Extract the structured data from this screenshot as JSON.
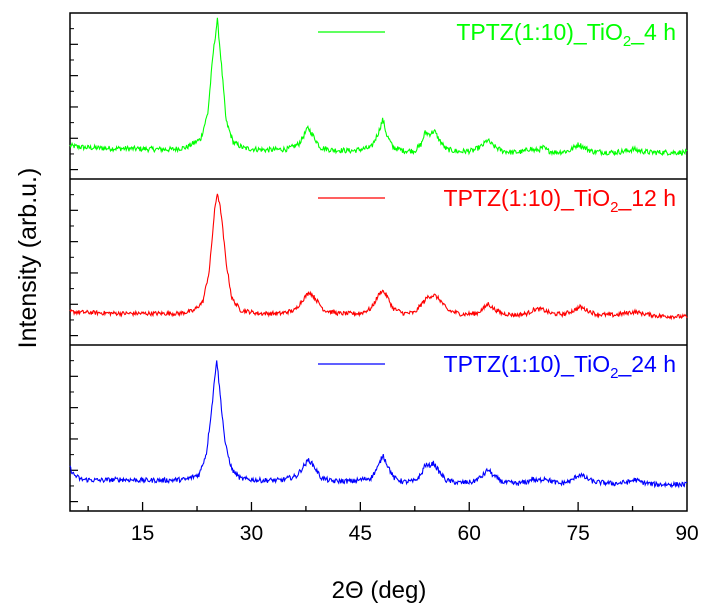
{
  "chart_data": {
    "type": "line",
    "xlabel": "2Θ (deg)",
    "ylabel": "Intensity (arb.u.)",
    "xlim": [
      5,
      90
    ],
    "x_ticks": [
      15,
      30,
      45,
      60,
      75,
      90
    ],
    "grid": false,
    "panels": [
      {
        "series_name": "TPTZ(1:10)_TiO2_4 h",
        "legend_main": "TPTZ(1:10)_TiO",
        "legend_sub": "2",
        "legend_tail": "_4 h",
        "color": "#00ff00",
        "ylim": [
          0,
          100
        ],
        "baseline": 18,
        "end": 16,
        "noise": 1.6,
        "points": [
          [
            5,
            20.0
          ],
          [
            7,
            19.0
          ],
          [
            10,
            18.5
          ],
          [
            13,
            18.3
          ],
          [
            16,
            18.0
          ],
          [
            19,
            17.8
          ],
          [
            21,
            19.0
          ],
          [
            23,
            24.0
          ],
          [
            24,
            40.0
          ],
          [
            24.7,
            75.0
          ],
          [
            25.3,
            96.0
          ],
          [
            25.8,
            72.0
          ],
          [
            26.5,
            35.0
          ],
          [
            27.5,
            22.0
          ],
          [
            29,
            18.5
          ],
          [
            32,
            17.5
          ],
          [
            35,
            18.0
          ],
          [
            36.5,
            21.0
          ],
          [
            37.2,
            26.0
          ],
          [
            37.8,
            31.0
          ],
          [
            38.5,
            26.0
          ],
          [
            39.5,
            19.0
          ],
          [
            41,
            17.5
          ],
          [
            44,
            17.0
          ],
          [
            46.5,
            19.0
          ],
          [
            47.5,
            28.0
          ],
          [
            48.1,
            36.0
          ],
          [
            48.6,
            27.0
          ],
          [
            49.5,
            19.0
          ],
          [
            51,
            17.0
          ],
          [
            52.5,
            17.0
          ],
          [
            53.4,
            21.0
          ],
          [
            53.9,
            28.0
          ],
          [
            54.5,
            27.0
          ],
          [
            55.2,
            29.0
          ],
          [
            55.8,
            24.0
          ],
          [
            56.8,
            18.0
          ],
          [
            58.5,
            16.5
          ],
          [
            60.5,
            17.0
          ],
          [
            61.8,
            20.0
          ],
          [
            62.5,
            23.5
          ],
          [
            63.3,
            20.0
          ],
          [
            64.5,
            17.0
          ],
          [
            66,
            16.0
          ],
          [
            67.5,
            16.5
          ],
          [
            68.4,
            18.5
          ],
          [
            69,
            17.0
          ],
          [
            69.8,
            18.0
          ],
          [
            70.2,
            19.0
          ],
          [
            70.8,
            17.0
          ],
          [
            72,
            16.0
          ],
          [
            73.8,
            17.0
          ],
          [
            74.6,
            19.5
          ],
          [
            75.1,
            21.0
          ],
          [
            75.8,
            19.0
          ],
          [
            77,
            16.5
          ],
          [
            80,
            16.0
          ],
          [
            81.8,
            17.0
          ],
          [
            82.6,
            18.0
          ],
          [
            83.4,
            17.0
          ],
          [
            85,
            16.0
          ],
          [
            90,
            16.0
          ]
        ]
      },
      {
        "series_name": "TPTZ(1:10)_TiO2_12 h",
        "legend_main": "TPTZ(1:10)_TiO",
        "legend_sub": "2",
        "legend_tail": "_12 h",
        "color": "#ff0000",
        "ylim": [
          0,
          100
        ],
        "baseline": 20,
        "end": 17,
        "noise": 1.3,
        "points": [
          [
            5,
            20.0
          ],
          [
            8,
            19.5
          ],
          [
            12,
            19.0
          ],
          [
            16,
            19.0
          ],
          [
            20,
            19.0
          ],
          [
            22,
            20.5
          ],
          [
            23.3,
            26.0
          ],
          [
            24.2,
            45.0
          ],
          [
            24.9,
            80.0
          ],
          [
            25.3,
            92.0
          ],
          [
            25.8,
            80.0
          ],
          [
            26.5,
            50.0
          ],
          [
            27.3,
            28.0
          ],
          [
            28.5,
            21.0
          ],
          [
            31,
            19.0
          ],
          [
            34,
            19.0
          ],
          [
            36,
            21.0
          ],
          [
            37.2,
            28.0
          ],
          [
            38,
            32.0
          ],
          [
            38.8,
            28.0
          ],
          [
            40,
            21.0
          ],
          [
            42,
            19.0
          ],
          [
            45,
            19.0
          ],
          [
            46.5,
            22.0
          ],
          [
            47.5,
            30.0
          ],
          [
            48,
            33.0
          ],
          [
            48.6,
            30.0
          ],
          [
            49.5,
            22.0
          ],
          [
            51,
            19.0
          ],
          [
            52.5,
            19.5
          ],
          [
            53.5,
            25.0
          ],
          [
            54.3,
            29.0
          ],
          [
            55.2,
            30.0
          ],
          [
            56,
            27.0
          ],
          [
            57,
            21.0
          ],
          [
            59,
            18.5
          ],
          [
            61,
            19.0
          ],
          [
            62,
            22.0
          ],
          [
            62.6,
            25.0
          ],
          [
            63.3,
            22.0
          ],
          [
            64.5,
            19.0
          ],
          [
            66.5,
            18.0
          ],
          [
            68,
            19.0
          ],
          [
            69,
            21.5
          ],
          [
            70,
            21.5
          ],
          [
            71.3,
            19.0
          ],
          [
            73,
            18.5
          ],
          [
            74.5,
            21.0
          ],
          [
            75.3,
            23.0
          ],
          [
            76.2,
            21.0
          ],
          [
            77.5,
            18.5
          ],
          [
            80,
            18.0
          ],
          [
            82,
            19.5
          ],
          [
            82.8,
            20.0
          ],
          [
            83.8,
            19.0
          ],
          [
            86,
            17.5
          ],
          [
            90,
            17.0
          ]
        ]
      },
      {
        "series_name": "TPTZ(1:10)_TiO2_24 h",
        "legend_main": "TPTZ(1:10)_TiO",
        "legend_sub": "2",
        "legend_tail": "_24 h",
        "color": "#0000ff",
        "ylim": [
          0,
          100
        ],
        "baseline": 19,
        "end": 16,
        "noise": 1.5,
        "points": [
          [
            5,
            26.0
          ],
          [
            5.5,
            22.0
          ],
          [
            6.5,
            19.0
          ],
          [
            9,
            18.5
          ],
          [
            12,
            19.0
          ],
          [
            15,
            18.5
          ],
          [
            18,
            18.5
          ],
          [
            21,
            19.0
          ],
          [
            22.8,
            22.0
          ],
          [
            23.8,
            35.0
          ],
          [
            24.6,
            65.0
          ],
          [
            25.2,
            92.0
          ],
          [
            25.8,
            65.0
          ],
          [
            26.4,
            40.0
          ],
          [
            27.3,
            25.0
          ],
          [
            28.5,
            19.5
          ],
          [
            31,
            18.5
          ],
          [
            34,
            18.5
          ],
          [
            36.2,
            21.0
          ],
          [
            37.2,
            27.0
          ],
          [
            37.9,
            31.0
          ],
          [
            38.6,
            27.0
          ],
          [
            39.6,
            20.0
          ],
          [
            41,
            18.0
          ],
          [
            44,
            18.0
          ],
          [
            46.5,
            20.0
          ],
          [
            47.5,
            27.0
          ],
          [
            48.1,
            34.0
          ],
          [
            48.7,
            28.0
          ],
          [
            49.6,
            20.0
          ],
          [
            51,
            17.5
          ],
          [
            52.5,
            18.0
          ],
          [
            53.4,
            22.0
          ],
          [
            53.9,
            28.0
          ],
          [
            54.4,
            27.0
          ],
          [
            55.1,
            29.0
          ],
          [
            55.8,
            24.0
          ],
          [
            56.8,
            18.5
          ],
          [
            58.5,
            17.0
          ],
          [
            60.5,
            17.5
          ],
          [
            61.8,
            21.0
          ],
          [
            62.6,
            25.0
          ],
          [
            63.4,
            21.0
          ],
          [
            64.6,
            17.5
          ],
          [
            66.5,
            16.5
          ],
          [
            68,
            17.5
          ],
          [
            68.7,
            19.5
          ],
          [
            69.3,
            18.0
          ],
          [
            70,
            19.0
          ],
          [
            70.5,
            20.0
          ],
          [
            71.2,
            18.0
          ],
          [
            72.5,
            16.5
          ],
          [
            74,
            18.0
          ],
          [
            74.8,
            21.0
          ],
          [
            75.3,
            22.0
          ],
          [
            76,
            20.0
          ],
          [
            77.2,
            17.5
          ],
          [
            80,
            16.5
          ],
          [
            82,
            17.5
          ],
          [
            82.8,
            19.0
          ],
          [
            83.6,
            17.5
          ],
          [
            85.5,
            16.0
          ],
          [
            90,
            16.0
          ]
        ]
      }
    ]
  }
}
